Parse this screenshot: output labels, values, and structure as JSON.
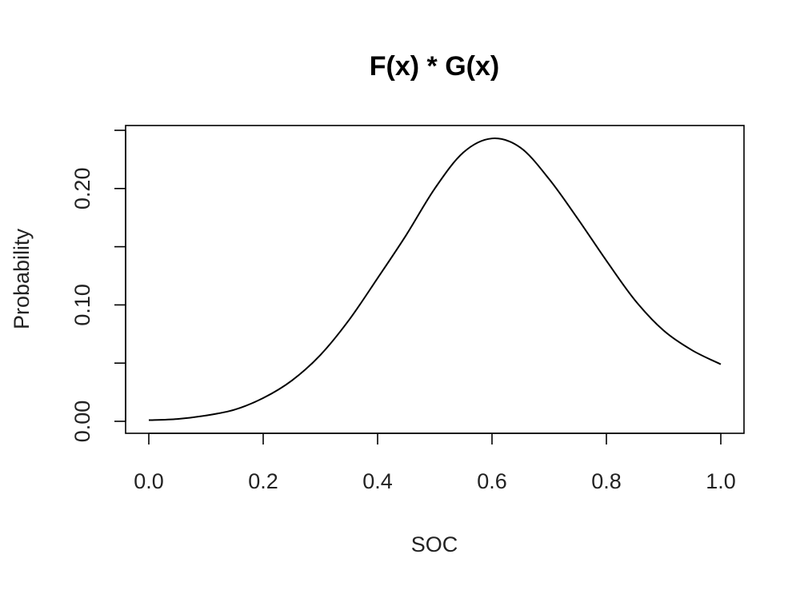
{
  "chart_data": {
    "type": "line",
    "title": "F(x) * G(x)",
    "xlabel": "SOC",
    "ylabel": "Probability",
    "xlim": [
      0.0,
      1.0
    ],
    "ylim": [
      0.0,
      0.25
    ],
    "x_ticks": [
      {
        "value": 0.0,
        "label": "0.0"
      },
      {
        "value": 0.2,
        "label": "0.2"
      },
      {
        "value": 0.4,
        "label": "0.4"
      },
      {
        "value": 0.6,
        "label": "0.6"
      },
      {
        "value": 0.8,
        "label": "0.8"
      },
      {
        "value": 1.0,
        "label": "1.0"
      }
    ],
    "y_ticks": [
      {
        "value": 0.0,
        "label": "0.00"
      },
      {
        "value": 0.05,
        "label": ""
      },
      {
        "value": 0.1,
        "label": "0.10"
      },
      {
        "value": 0.15,
        "label": ""
      },
      {
        "value": 0.2,
        "label": "0.20"
      },
      {
        "value": 0.25,
        "label": ""
      }
    ],
    "grid": false,
    "series": [
      {
        "color": "#000000",
        "x": [
          0.0,
          0.05,
          0.1,
          0.15,
          0.2,
          0.25,
          0.3,
          0.35,
          0.4,
          0.45,
          0.5,
          0.55,
          0.6,
          0.65,
          0.7,
          0.75,
          0.8,
          0.85,
          0.9,
          0.95,
          1.0
        ],
        "y": [
          0.001,
          0.002,
          0.005,
          0.01,
          0.02,
          0.035,
          0.057,
          0.087,
          0.123,
          0.16,
          0.2,
          0.231,
          0.243,
          0.235,
          0.208,
          0.174,
          0.138,
          0.104,
          0.078,
          0.061,
          0.049
        ]
      }
    ]
  }
}
